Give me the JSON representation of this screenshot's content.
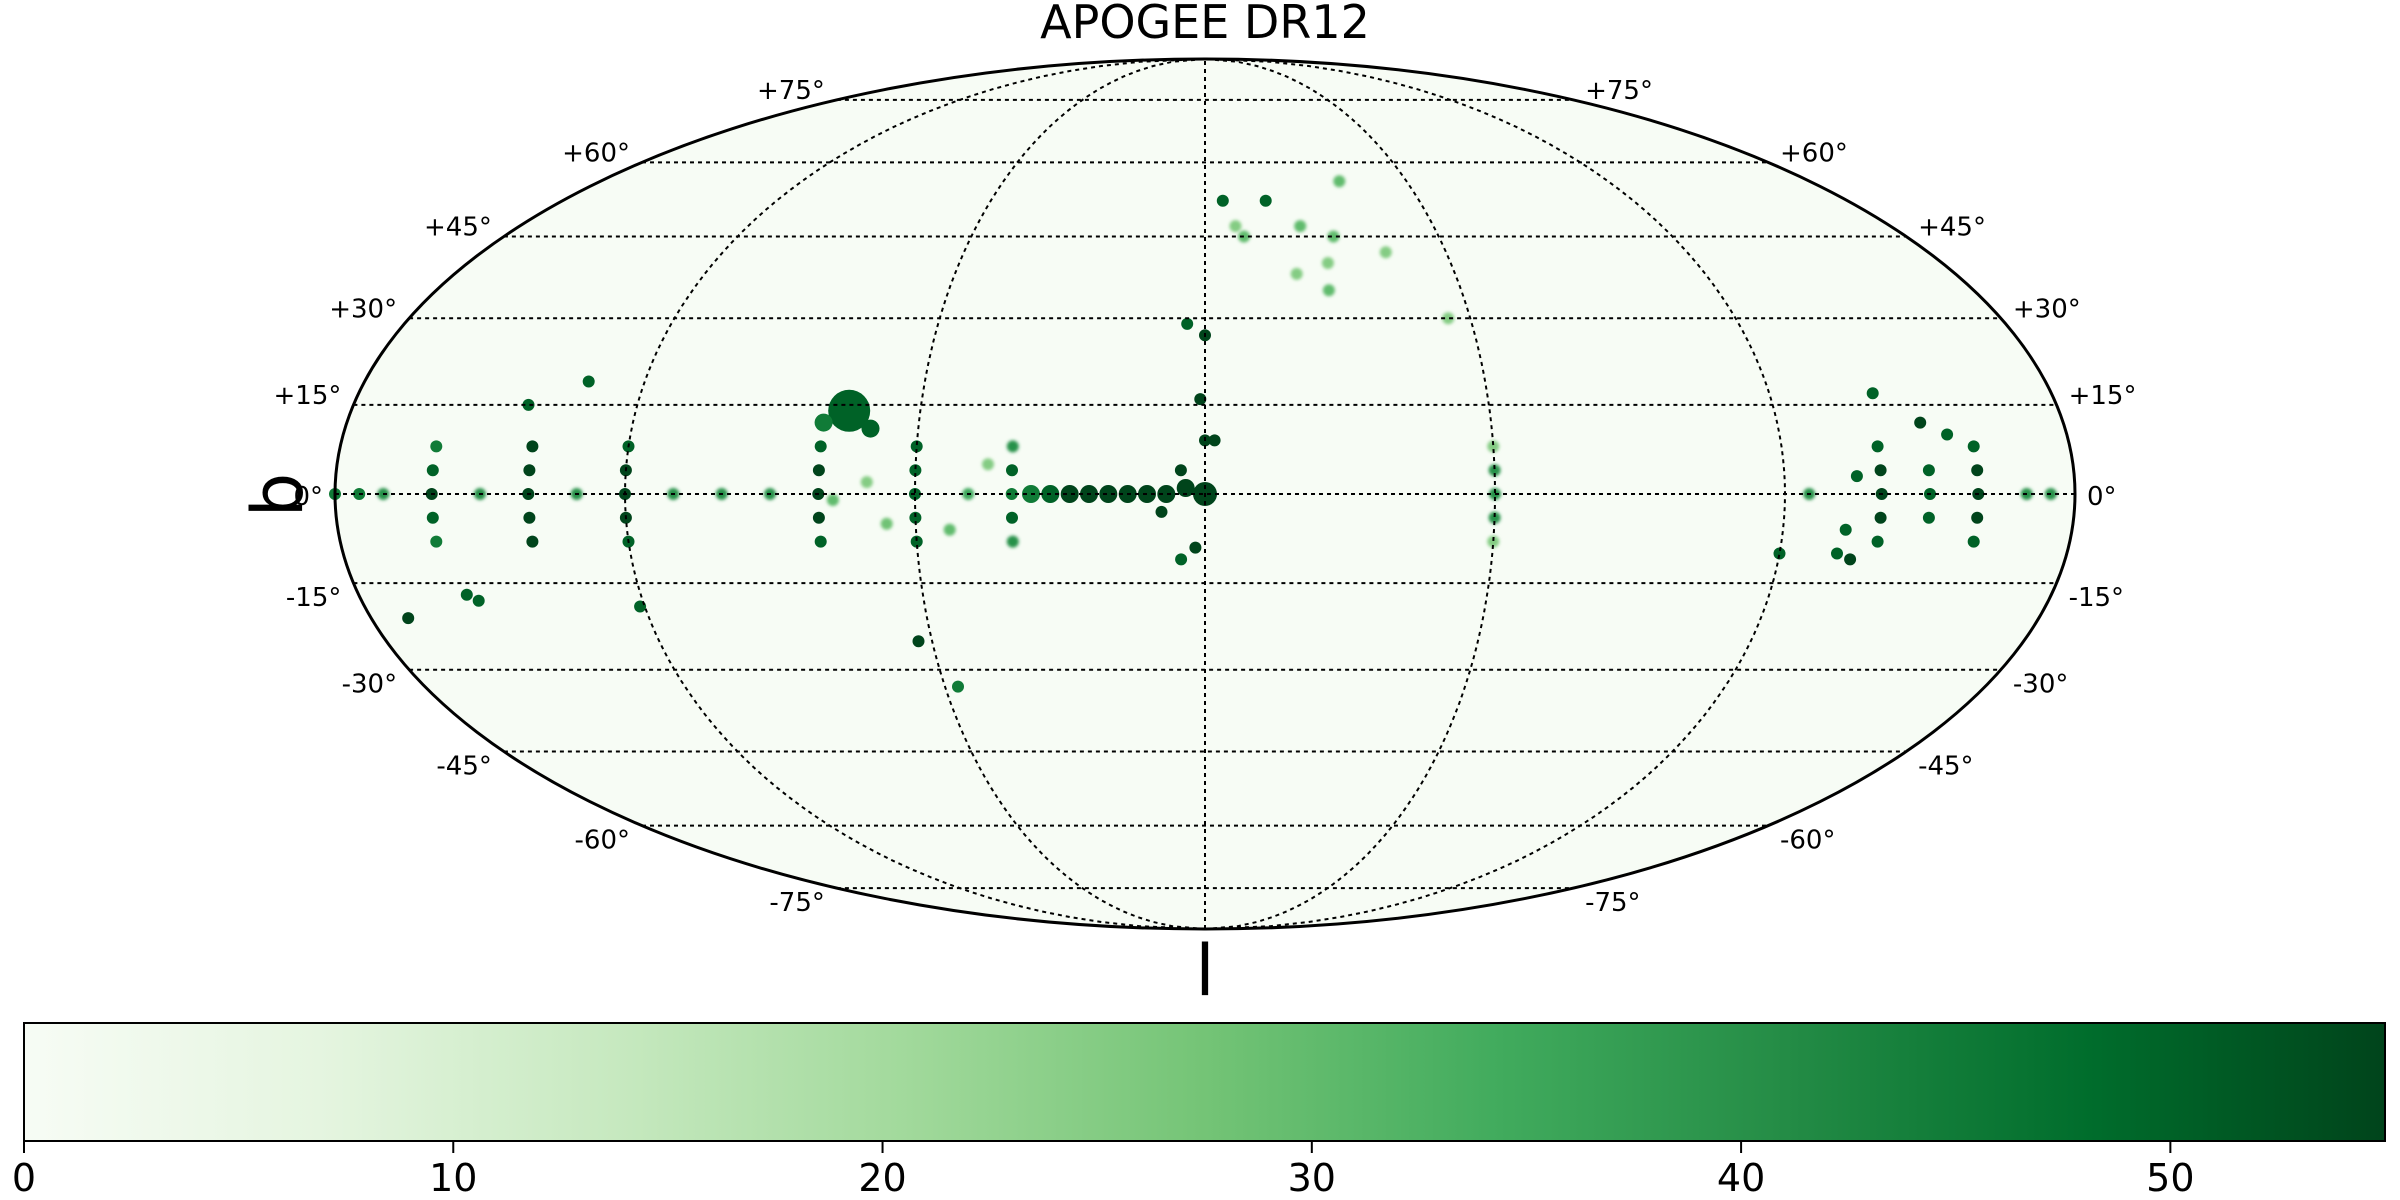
{
  "chart_data": {
    "type": "heatmap",
    "projection": "mollweide",
    "title": "APOGEE DR12",
    "xlabel": "l",
    "ylabel": "b",
    "colormap": "Greens",
    "colors": {
      "low": "#f7fcf5",
      "mid": "#74c476",
      "high": "#00441b",
      "grid": "#000000"
    },
    "lat_ticks": [
      {
        "value": 75,
        "label": "+75°"
      },
      {
        "value": 60,
        "label": "+60°"
      },
      {
        "value": 45,
        "label": "+45°"
      },
      {
        "value": 30,
        "label": "+30°"
      },
      {
        "value": 15,
        "label": "+15°"
      },
      {
        "value": 0,
        "label": "0°"
      },
      {
        "value": -15,
        "label": "-15°"
      },
      {
        "value": -30,
        "label": "-30°"
      },
      {
        "value": -45,
        "label": "-45°"
      },
      {
        "value": -60,
        "label": "-60°"
      },
      {
        "value": -75,
        "label": "-75°"
      }
    ],
    "lon_grid": [
      -180,
      -120,
      -60,
      0,
      60,
      120,
      180
    ],
    "colorbar": {
      "range": [
        0,
        55
      ],
      "ticks": [
        {
          "value": 0,
          "label": "0"
        },
        {
          "value": 10,
          "label": "10"
        },
        {
          "value": 20,
          "label": "20"
        },
        {
          "value": 30,
          "label": "30"
        },
        {
          "value": 40,
          "label": "40"
        },
        {
          "value": 50,
          "label": "50"
        }
      ]
    },
    "spots": [
      [
        0,
        0,
        55,
        4
      ],
      [
        4,
        1,
        55,
        3
      ],
      [
        8,
        0,
        55,
        3
      ],
      [
        12,
        0,
        55,
        3
      ],
      [
        16,
        0,
        55,
        3
      ],
      [
        20,
        0,
        55,
        3
      ],
      [
        24,
        0,
        55,
        3
      ],
      [
        28,
        0,
        55,
        3
      ],
      [
        32,
        0,
        50,
        3
      ],
      [
        36,
        0,
        45,
        3
      ],
      [
        5,
        4,
        55,
        2
      ],
      [
        9,
        -3,
        55,
        2
      ],
      [
        2,
        -9,
        55,
        2
      ],
      [
        5,
        -11,
        50,
        2
      ],
      [
        0,
        9,
        55,
        2
      ],
      [
        1,
        16,
        55,
        2
      ],
      [
        -2,
        9,
        55,
        2
      ],
      [
        0,
        27,
        55,
        2
      ],
      [
        4,
        29,
        50,
        2
      ],
      [
        40,
        0,
        45,
        2
      ],
      [
        40,
        4,
        50,
        2
      ],
      [
        40,
        -4,
        50,
        2
      ],
      [
        40,
        8,
        40,
        2
      ],
      [
        40,
        -8,
        40,
        2
      ],
      [
        60,
        0,
        50,
        2
      ],
      [
        60,
        4,
        50,
        2
      ],
      [
        60,
        -4,
        50,
        2
      ],
      [
        60,
        8,
        50,
        2
      ],
      [
        60,
        -8,
        50,
        2
      ],
      [
        49,
        0,
        35,
        2
      ],
      [
        53,
        -6,
        30,
        2
      ],
      [
        45,
        5,
        25,
        2
      ],
      [
        66,
        -5,
        28,
        2
      ],
      [
        70,
        2,
        25,
        2
      ],
      [
        75,
        14,
        50,
        7
      ],
      [
        70,
        11,
        50,
        3
      ],
      [
        80,
        12,
        45,
        3
      ],
      [
        77,
        -1,
        30,
        2
      ],
      [
        80,
        0,
        55,
        2
      ],
      [
        80,
        4,
        55,
        2
      ],
      [
        80,
        -4,
        55,
        2
      ],
      [
        80,
        8,
        50,
        2
      ],
      [
        80,
        -8,
        50,
        2
      ],
      [
        90,
        0,
        40,
        2
      ],
      [
        100,
        0,
        40,
        2
      ],
      [
        110,
        0,
        40,
        2
      ],
      [
        120,
        0,
        55,
        2
      ],
      [
        120,
        4,
        55,
        2
      ],
      [
        120,
        -4,
        55,
        2
      ],
      [
        120,
        8,
        50,
        2
      ],
      [
        120,
        -8,
        50,
        2
      ],
      [
        130,
        0,
        40,
        2
      ],
      [
        140,
        0,
        55,
        2
      ],
      [
        140,
        4,
        55,
        2
      ],
      [
        140,
        -4,
        55,
        2
      ],
      [
        140,
        8,
        55,
        2
      ],
      [
        140,
        -8,
        55,
        2
      ],
      [
        150,
        0,
        40,
        2
      ],
      [
        160,
        0,
        55,
        2
      ],
      [
        160,
        4,
        50,
        2
      ],
      [
        160,
        -4,
        50,
        2
      ],
      [
        160,
        8,
        45,
        2
      ],
      [
        160,
        -8,
        45,
        2
      ],
      [
        170,
        0,
        40,
        2
      ],
      [
        175,
        0,
        45,
        2
      ],
      [
        143,
        15,
        50,
        2
      ],
      [
        132,
        19,
        50,
        2
      ],
      [
        157,
        -17,
        50,
        2
      ],
      [
        155,
        -18,
        50,
        2
      ],
      [
        172,
        -21,
        55,
        2
      ],
      [
        121,
        -19,
        50,
        2
      ],
      [
        63,
        -25,
        55,
        2
      ],
      [
        57,
        -33,
        45,
        2
      ],
      [
        -60,
        0,
        40,
        2
      ],
      [
        -60,
        4,
        40,
        2
      ],
      [
        -60,
        -4,
        40,
        2
      ],
      [
        -60,
        8,
        25,
        2
      ],
      [
        -60,
        -8,
        25,
        2
      ],
      [
        -125,
        0,
        40,
        2
      ],
      [
        -140,
        0,
        55,
        2
      ],
      [
        -140,
        4,
        55,
        2
      ],
      [
        -140,
        -4,
        55,
        2
      ],
      [
        -140,
        8,
        50,
        2
      ],
      [
        -140,
        -8,
        50,
        2
      ],
      [
        -150,
        0,
        50,
        2
      ],
      [
        -150,
        4,
        50,
        2
      ],
      [
        -150,
        -4,
        50,
        2
      ],
      [
        -160,
        0,
        55,
        2
      ],
      [
        -160,
        4,
        55,
        2
      ],
      [
        -160,
        -4,
        55,
        2
      ],
      [
        -160,
        8,
        50,
        2
      ],
      [
        -160,
        -8,
        50,
        2
      ],
      [
        -170,
        0,
        40,
        2
      ],
      [
        -175,
        0,
        40,
        2
      ],
      [
        -135,
        3,
        50,
        2
      ],
      [
        -133,
        -6,
        50,
        2
      ],
      [
        -132,
        -10,
        50,
        2
      ],
      [
        -135,
        -11,
        55,
        2
      ],
      [
        -155,
        10,
        50,
        2
      ],
      [
        -150,
        12,
        55,
        2
      ],
      [
        -142,
        17,
        50,
        2
      ],
      [
        -120,
        -10,
        50,
        2
      ],
      [
        -10,
        45,
        30,
        2
      ],
      [
        -33,
        45,
        30,
        2
      ],
      [
        -45,
        42,
        25,
        2
      ],
      [
        -30,
        40,
        25,
        2
      ],
      [
        -17,
        52,
        50,
        2
      ],
      [
        -22,
        38,
        25,
        2
      ],
      [
        -29,
        35,
        30,
        2
      ],
      [
        -55,
        30,
        25,
        2
      ],
      [
        -5,
        52,
        50,
        2
      ],
      [
        -25,
        47,
        30,
        2
      ],
      [
        -8,
        47,
        25,
        2
      ],
      [
        -40,
        56,
        30,
        2
      ],
      [
        180,
        0,
        45,
        2
      ]
    ]
  }
}
